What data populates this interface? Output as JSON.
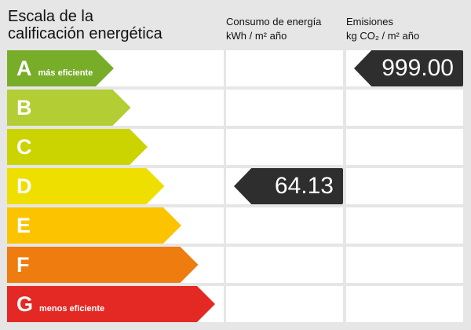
{
  "title_line1": "Escala de la",
  "title_line2": "calificación energética",
  "consumo": {
    "line1": "Consumo de energía",
    "line2": "kWh / m² año"
  },
  "emisiones": {
    "line1": "Emisiones",
    "line2": "kg CO₂ / m² año"
  },
  "ratings": [
    {
      "letter": "A",
      "label": "más eficiente",
      "color": "#78ad2a"
    },
    {
      "letter": "B",
      "label": "",
      "color": "#b3cd34"
    },
    {
      "letter": "C",
      "label": "",
      "color": "#cbd300"
    },
    {
      "letter": "D",
      "label": "",
      "color": "#efdf00"
    },
    {
      "letter": "E",
      "label": "",
      "color": "#fcc400"
    },
    {
      "letter": "F",
      "label": "",
      "color": "#ee7c0e"
    },
    {
      "letter": "G",
      "label": "menos eficiente",
      "color": "#e42823"
    }
  ],
  "consumo_value": {
    "value": "64.13",
    "rating": "D"
  },
  "emisiones_value": {
    "value": "999.00",
    "rating": "A"
  }
}
